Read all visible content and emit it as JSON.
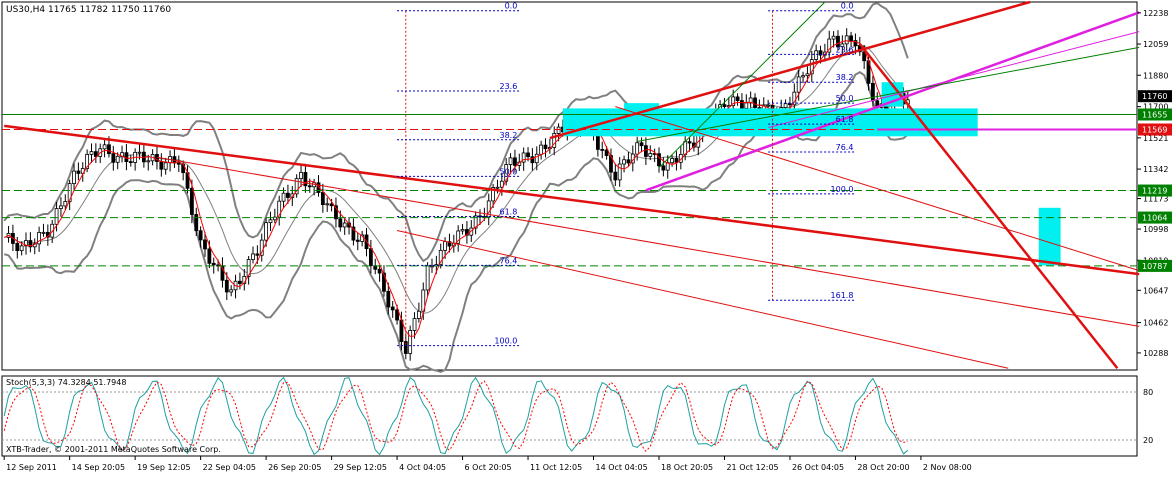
{
  "chart_data": {
    "type": "candlestick",
    "symbol_header": "US30,H4  11765 11782 11750 11760",
    "colors": {
      "background": "#ffffff",
      "candles": "#000000",
      "bollinger": "#808080",
      "moving_average": "#ff0000",
      "red_trendlines": "#e01010",
      "magenta_lines": "#e020e0",
      "green_lines": "#008000",
      "cyan_zones": "#00f0f0",
      "fibonacci": "#0000c0"
    },
    "y_axis": {
      "ylim": [
        10190,
        12300
      ],
      "tick_labels": [
        "12238",
        "12059",
        "11880",
        "11700",
        "11521",
        "11342",
        "11173",
        "10998",
        "10819",
        "10647",
        "10462",
        "10288"
      ],
      "tick_values": [
        12238,
        12059,
        11880,
        11700,
        11521,
        11342,
        11173,
        10998,
        10819,
        10647,
        10462,
        10288
      ]
    },
    "price_tags": [
      {
        "label": "11760",
        "value": 11760,
        "color": "#000000"
      },
      {
        "label": "11655",
        "value": 11655,
        "color": "#008000"
      },
      {
        "label": "11569",
        "value": 11569,
        "color": "#e01010"
      },
      {
        "label": "11219",
        "value": 11219,
        "color": "#008000"
      },
      {
        "label": "11064",
        "value": 11064,
        "color": "#008000"
      },
      {
        "label": "10787",
        "value": 10787,
        "color": "#008000"
      }
    ],
    "horizontal_levels": [
      {
        "value": 11655,
        "color": "#008000",
        "style": "solid"
      },
      {
        "value": 11569,
        "color": "#e01010",
        "style": "dashed"
      },
      {
        "value": 11219,
        "color": "#008000",
        "style": "dashed"
      },
      {
        "value": 11064,
        "color": "#008000",
        "style": "dashed"
      },
      {
        "value": 10787,
        "color": "#008000",
        "style": "dashed"
      }
    ],
    "x_axis": {
      "bar_count": 260,
      "tick_labels": [
        "12 Sep 2011",
        "14 Sep 20:05",
        "19 Sep 12:05",
        "22 Sep 04:05",
        "26 Sep 20:05",
        "29 Sep 12:05",
        "4 Oct 04:05",
        "6 Oct 20:05",
        "11 Oct 12:05",
        "14 Oct 04:05",
        "18 Oct 20:05",
        "21 Oct 12:05",
        "26 Oct 04:05",
        "28 Oct 20:00",
        "2 Nov 08:00"
      ],
      "tick_bars": [
        0,
        15,
        30,
        45,
        60,
        75,
        90,
        105,
        120,
        135,
        150,
        165,
        180,
        195,
        210
      ]
    },
    "price_keypoints": [
      [
        0,
        10950
      ],
      [
        4,
        10860
      ],
      [
        10,
        11010
      ],
      [
        16,
        11280
      ],
      [
        22,
        11480
      ],
      [
        28,
        11400
      ],
      [
        35,
        11380
      ],
      [
        40,
        11420
      ],
      [
        45,
        10880
      ],
      [
        52,
        10660
      ],
      [
        58,
        10860
      ],
      [
        63,
        11150
      ],
      [
        68,
        11320
      ],
      [
        75,
        11080
      ],
      [
        82,
        10950
      ],
      [
        88,
        10560
      ],
      [
        92,
        10320
      ],
      [
        97,
        10760
      ],
      [
        105,
        10980
      ],
      [
        110,
        11120
      ],
      [
        116,
        11360
      ],
      [
        122,
        11450
      ],
      [
        128,
        11560
      ],
      [
        134,
        11620
      ],
      [
        140,
        11300
      ],
      [
        146,
        11470
      ],
      [
        152,
        11370
      ],
      [
        158,
        11480
      ],
      [
        165,
        11750
      ],
      [
        172,
        11680
      ],
      [
        178,
        11690
      ],
      [
        184,
        11900
      ],
      [
        190,
        12100
      ],
      [
        195,
        12090
      ],
      [
        200,
        11650
      ],
      [
        205,
        11790
      ],
      [
        207,
        11760
      ]
    ],
    "fib_left": [
      {
        "label": "0.0",
        "value": 12250
      },
      {
        "label": "23.6",
        "value": 11790
      },
      {
        "label": "38.2",
        "value": 11510
      },
      {
        "label": "50.0",
        "value": 11300
      },
      {
        "label": "61.8",
        "value": 11070
      },
      {
        "label": "76.4",
        "value": 10790
      },
      {
        "label": "100.0",
        "value": 10330
      }
    ],
    "fib_right": [
      {
        "label": "0.0",
        "value": 12250
      },
      {
        "label": "23.6",
        "value": 12000
      },
      {
        "label": "38.2",
        "value": 11840
      },
      {
        "label": "50.0",
        "value": 11720
      },
      {
        "label": "61.8",
        "value": 11600
      },
      {
        "label": "76.4",
        "value": 11440
      },
      {
        "label": "100.0",
        "value": 11200
      },
      {
        "label": "161.8",
        "value": 10590
      }
    ],
    "stochastic": {
      "label": "Stoch(5,3,3) 74.3284 51.7948",
      "levels": [
        {
          "label": "80",
          "value": 80
        },
        {
          "label": "20",
          "value": 20
        }
      ],
      "colors": {
        "main": "#20a0a0",
        "signal": "#ff0000"
      }
    },
    "copyright": "XTB-Trader, © 2001-2011 MetaQuotes Software Corp."
  }
}
